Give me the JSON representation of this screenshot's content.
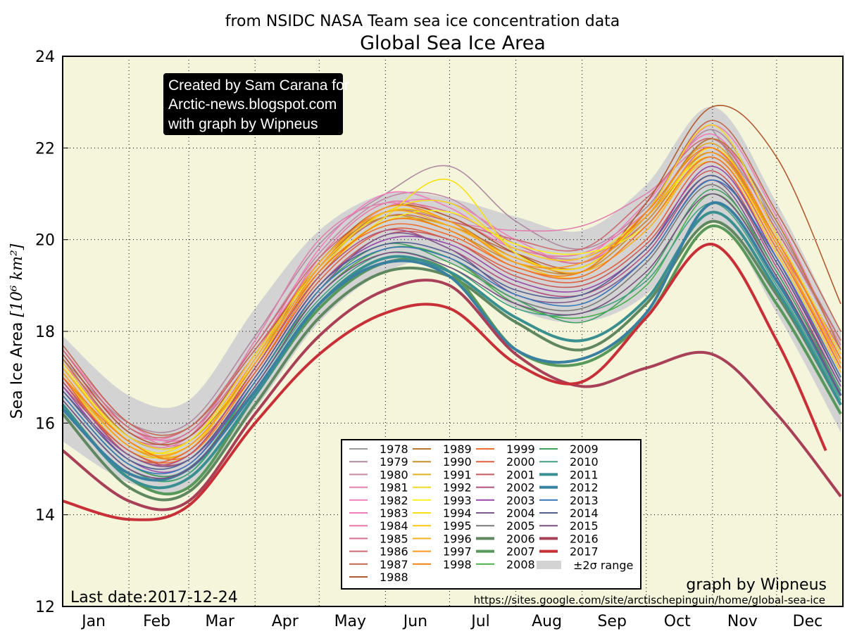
{
  "chart_data": {
    "type": "line",
    "subtitle": "from NSIDC NASA Team sea ice concentration data",
    "title": "Global Sea Ice Area",
    "ylabel": "Sea Ice Area [10^6 km^2]",
    "ylabel_plain": "Sea Ice Area ",
    "ylabel_unit": "[10⁶ km²]",
    "ylim": [
      12,
      24
    ],
    "y_ticks": [
      12,
      14,
      16,
      18,
      20,
      22,
      24
    ],
    "y_tick_labels": [
      "12",
      "14",
      "16",
      "18",
      "20",
      "22",
      "24"
    ],
    "x_tick_labels": [
      "Jan",
      "Feb",
      "Mar",
      "Apr",
      "May",
      "Jun",
      "Jul",
      "Aug",
      "Sep",
      "Oct",
      "Nov",
      "Dec"
    ],
    "grid": true,
    "background_color": "#f5f5dc",
    "legend_placement": "lower-center",
    "x": [
      "01-01",
      "02-01",
      "03-01",
      "04-01",
      "05-01",
      "06-01",
      "07-01",
      "08-01",
      "09-01",
      "10-01",
      "11-01",
      "12-01",
      "12-31"
    ],
    "range_band": {
      "name": "±2σ range",
      "color": "#d3d3d3",
      "upper": [
        17.9,
        16.6,
        16.5,
        18.5,
        20.2,
        21.0,
        20.9,
        20.5,
        20.2,
        21.2,
        22.9,
        20.8,
        18.0
      ],
      "lower": [
        15.6,
        14.7,
        14.6,
        16.3,
        18.2,
        19.3,
        19.5,
        18.5,
        18.2,
        18.8,
        20.4,
        18.4,
        15.8
      ]
    },
    "series": [
      {
        "name": "1978",
        "color": "#999999",
        "thick": false,
        "values": [
          null,
          null,
          null,
          null,
          null,
          null,
          null,
          null,
          null,
          null,
          22.4,
          20.3,
          17.8
        ]
      },
      {
        "name": "1979",
        "color": "#b08aa0",
        "thick": false,
        "values": [
          17.4,
          16.0,
          16.0,
          17.9,
          19.9,
          21.0,
          21.6,
          20.4,
          19.8,
          20.7,
          22.4,
          20.3,
          17.8
        ]
      },
      {
        "name": "1980",
        "color": "#c48aa8",
        "thick": false,
        "values": [
          17.6,
          15.9,
          15.8,
          17.7,
          19.7,
          20.9,
          20.9,
          19.9,
          19.6,
          20.5,
          22.2,
          20.2,
          17.7
        ]
      },
      {
        "name": "1981",
        "color": "#e080b0",
        "thick": false,
        "values": [
          17.3,
          15.7,
          15.7,
          17.8,
          20.0,
          20.8,
          20.4,
          20.2,
          20.3,
          21.0,
          22.0,
          20.0,
          17.4
        ]
      },
      {
        "name": "1982",
        "color": "#ee80b8",
        "thick": false,
        "values": [
          17.5,
          15.8,
          15.9,
          17.6,
          19.5,
          20.7,
          20.8,
          20.0,
          19.5,
          20.6,
          22.5,
          20.5,
          17.6
        ]
      },
      {
        "name": "1983",
        "color": "#f07cbc",
        "thick": false,
        "values": [
          17.6,
          16.0,
          15.7,
          17.5,
          19.8,
          21.0,
          20.7,
          19.8,
          19.6,
          20.8,
          22.3,
          20.1,
          17.3
        ]
      },
      {
        "name": "1984",
        "color": "#e878a8",
        "thick": false,
        "values": [
          17.3,
          15.9,
          15.6,
          17.4,
          19.6,
          20.8,
          20.5,
          19.8,
          19.7,
          20.6,
          22.1,
          20.0,
          17.5
        ]
      },
      {
        "name": "1985",
        "color": "#d87090",
        "thick": false,
        "values": [
          17.4,
          15.7,
          15.8,
          17.5,
          19.5,
          20.7,
          20.6,
          19.9,
          19.5,
          20.4,
          22.0,
          19.9,
          17.6
        ]
      },
      {
        "name": "1986",
        "color": "#cc6c70",
        "thick": false,
        "values": [
          17.6,
          15.9,
          15.9,
          17.7,
          19.6,
          20.6,
          20.4,
          20.0,
          19.8,
          20.9,
          22.2,
          20.2,
          17.8
        ]
      },
      {
        "name": "1987",
        "color": "#c06850",
        "thick": false,
        "values": [
          17.7,
          16.0,
          15.9,
          17.6,
          19.4,
          20.5,
          20.3,
          19.7,
          19.4,
          20.6,
          22.6,
          20.6,
          18.0
        ]
      },
      {
        "name": "1988",
        "color": "#b05a30",
        "thick": false,
        "values": [
          17.5,
          15.8,
          15.7,
          17.5,
          19.5,
          20.7,
          20.5,
          19.7,
          19.3,
          20.8,
          22.9,
          21.8,
          18.6
        ]
      },
      {
        "name": "1989",
        "color": "#b87830",
        "thick": false,
        "values": [
          17.4,
          15.7,
          15.6,
          17.3,
          19.4,
          20.6,
          20.4,
          19.6,
          19.4,
          20.5,
          22.2,
          20.4,
          17.6
        ]
      },
      {
        "name": "1990",
        "color": "#c89030",
        "thick": false,
        "values": [
          17.2,
          15.6,
          15.5,
          17.3,
          19.5,
          20.5,
          20.2,
          19.5,
          19.3,
          20.4,
          21.9,
          20.0,
          17.4
        ]
      },
      {
        "name": "1991",
        "color": "#e0b020",
        "thick": false,
        "values": [
          17.0,
          15.5,
          15.4,
          17.4,
          19.3,
          20.4,
          20.3,
          19.6,
          19.4,
          20.5,
          22.1,
          19.9,
          17.3
        ]
      },
      {
        "name": "1992",
        "color": "#f0d820",
        "thick": false,
        "values": [
          17.2,
          15.7,
          15.6,
          17.5,
          19.4,
          20.6,
          20.8,
          19.8,
          19.6,
          20.6,
          22.5,
          20.1,
          17.5
        ]
      },
      {
        "name": "1993",
        "color": "#f8f020",
        "thick": false,
        "values": [
          17.3,
          15.6,
          15.5,
          17.2,
          19.3,
          20.4,
          20.6,
          19.9,
          19.7,
          20.3,
          22.0,
          20.0,
          17.4
        ]
      },
      {
        "name": "1994",
        "color": "#f8e010",
        "thick": false,
        "values": [
          17.1,
          15.5,
          15.6,
          17.3,
          19.2,
          20.5,
          21.3,
          19.7,
          19.4,
          20.5,
          21.8,
          19.9,
          17.2
        ]
      },
      {
        "name": "1995",
        "color": "#f8c818",
        "thick": false,
        "values": [
          17.0,
          15.4,
          15.5,
          17.2,
          19.3,
          20.6,
          20.4,
          19.5,
          19.2,
          20.3,
          21.7,
          19.7,
          17.1
        ]
      },
      {
        "name": "1996",
        "color": "#f8b020",
        "thick": false,
        "values": [
          17.2,
          15.6,
          15.4,
          17.4,
          19.5,
          20.6,
          20.3,
          19.6,
          19.3,
          20.2,
          21.8,
          19.8,
          17.3
        ]
      },
      {
        "name": "1997",
        "color": "#f89820",
        "thick": false,
        "values": [
          17.1,
          15.5,
          15.5,
          17.3,
          19.4,
          20.7,
          20.4,
          19.5,
          19.5,
          20.5,
          21.9,
          19.9,
          17.2
        ]
      },
      {
        "name": "1998",
        "color": "#f88010",
        "thick": false,
        "values": [
          17.0,
          15.6,
          15.3,
          17.1,
          19.2,
          20.4,
          20.2,
          19.4,
          19.3,
          20.6,
          22.0,
          20.0,
          17.4
        ]
      },
      {
        "name": "1999",
        "color": "#f07030",
        "thick": false,
        "values": [
          16.9,
          15.4,
          15.3,
          17.2,
          19.3,
          20.3,
          20.1,
          19.4,
          19.2,
          20.3,
          21.8,
          19.8,
          17.2
        ]
      },
      {
        "name": "2000",
        "color": "#e06040",
        "thick": false,
        "values": [
          17.0,
          15.3,
          15.4,
          17.1,
          19.1,
          20.2,
          20.0,
          19.3,
          19.1,
          20.0,
          21.7,
          19.6,
          17.0
        ]
      },
      {
        "name": "2001",
        "color": "#c85a5a",
        "thick": false,
        "values": [
          16.8,
          15.4,
          15.2,
          17.0,
          19.0,
          20.1,
          20.0,
          19.2,
          19.0,
          19.9,
          21.5,
          19.5,
          16.9
        ]
      },
      {
        "name": "2002",
        "color": "#b05080",
        "thick": false,
        "values": [
          16.9,
          15.3,
          15.3,
          17.2,
          19.2,
          20.2,
          19.8,
          19.0,
          18.8,
          19.7,
          21.4,
          19.4,
          16.8
        ]
      },
      {
        "name": "2003",
        "color": "#9848a8",
        "thick": false,
        "values": [
          16.8,
          15.2,
          15.1,
          17.0,
          19.0,
          20.0,
          19.9,
          19.1,
          18.9,
          19.8,
          21.6,
          19.6,
          16.9
        ]
      },
      {
        "name": "2004",
        "color": "#805890",
        "thick": false,
        "values": [
          16.7,
          15.3,
          15.2,
          16.9,
          18.9,
          20.1,
          19.8,
          18.8,
          18.7,
          19.6,
          21.3,
          19.3,
          16.8
        ]
      },
      {
        "name": "2005",
        "color": "#787878",
        "thick": false,
        "values": [
          16.6,
          15.1,
          15.0,
          16.8,
          18.8,
          19.8,
          19.6,
          18.7,
          18.5,
          19.5,
          21.2,
          19.2,
          16.7
        ]
      },
      {
        "name": "2006",
        "color": "#608860",
        "thick": true,
        "values": [
          16.2,
          14.6,
          14.5,
          16.4,
          18.3,
          19.3,
          19.2,
          18.2,
          17.6,
          18.6,
          20.4,
          18.8,
          16.4
        ]
      },
      {
        "name": "2007",
        "color": "#58985a",
        "thick": true,
        "values": [
          16.4,
          14.8,
          14.6,
          16.6,
          18.5,
          19.5,
          19.3,
          17.6,
          17.3,
          18.3,
          20.3,
          18.6,
          16.2
        ]
      },
      {
        "name": "2008",
        "color": "#48b048",
        "thick": false,
        "values": [
          16.5,
          15.0,
          14.9,
          16.9,
          18.8,
          19.8,
          19.6,
          18.6,
          18.3,
          19.0,
          21.0,
          19.2,
          16.6
        ]
      },
      {
        "name": "2009",
        "color": "#40a060",
        "thick": false,
        "values": [
          16.6,
          15.1,
          15.0,
          16.9,
          18.9,
          19.9,
          19.5,
          18.7,
          18.2,
          19.2,
          21.1,
          19.3,
          16.7
        ]
      },
      {
        "name": "2010",
        "color": "#40a080",
        "thick": false,
        "values": [
          16.5,
          15.0,
          14.9,
          16.8,
          18.7,
          19.7,
          19.4,
          18.5,
          18.4,
          19.1,
          20.8,
          19.0,
          16.5
        ]
      },
      {
        "name": "2011",
        "color": "#3a9090",
        "thick": true,
        "values": [
          16.4,
          14.8,
          14.8,
          16.6,
          18.6,
          19.6,
          19.3,
          18.3,
          17.8,
          18.7,
          20.6,
          18.9,
          16.4
        ]
      },
      {
        "name": "2012",
        "color": "#3a80a0",
        "thick": true,
        "values": [
          16.3,
          14.9,
          15.0,
          16.7,
          18.6,
          19.5,
          19.2,
          17.6,
          17.4,
          18.4,
          20.8,
          19.1,
          16.6
        ]
      },
      {
        "name": "2013",
        "color": "#3878b8",
        "thick": false,
        "values": [
          16.6,
          15.1,
          15.1,
          16.9,
          18.9,
          19.8,
          19.6,
          18.8,
          18.6,
          19.6,
          21.3,
          19.6,
          17.0
        ]
      },
      {
        "name": "2014",
        "color": "#506090",
        "thick": false,
        "values": [
          16.7,
          15.2,
          15.2,
          17.0,
          19.0,
          19.9,
          19.7,
          18.9,
          18.8,
          19.8,
          21.4,
          19.5,
          16.9
        ]
      },
      {
        "name": "2015",
        "color": "#785080",
        "thick": false,
        "values": [
          16.5,
          15.0,
          15.0,
          16.8,
          18.8,
          19.7,
          19.4,
          18.6,
          18.4,
          19.3,
          21.0,
          19.2,
          16.6
        ]
      },
      {
        "name": "2016",
        "color": "#a84058",
        "thick": true,
        "values": [
          15.4,
          14.3,
          14.3,
          16.2,
          17.9,
          18.9,
          19.0,
          17.5,
          16.8,
          17.2,
          17.5,
          16.2,
          14.4
        ]
      },
      {
        "name": "2017",
        "color": "#c83038",
        "thick": true,
        "values": [
          14.3,
          13.9,
          14.2,
          16.0,
          17.5,
          18.4,
          18.5,
          17.3,
          16.9,
          18.3,
          19.9,
          17.8,
          null
        ],
        "extra_points": [
          [
            "12-24",
            15.4
          ]
        ]
      }
    ],
    "annotations": {
      "credit_lines": [
        "Created by Sam Carana for",
        "Arctic-news.blogspot.com",
        "with graph by Wipneus"
      ],
      "last_date": "Last date:2017-12-24",
      "graph_by": "graph by Wipneus",
      "source_url": "https://sites.google.com/site/arctischepinguin/home/global-sea-ice"
    }
  }
}
